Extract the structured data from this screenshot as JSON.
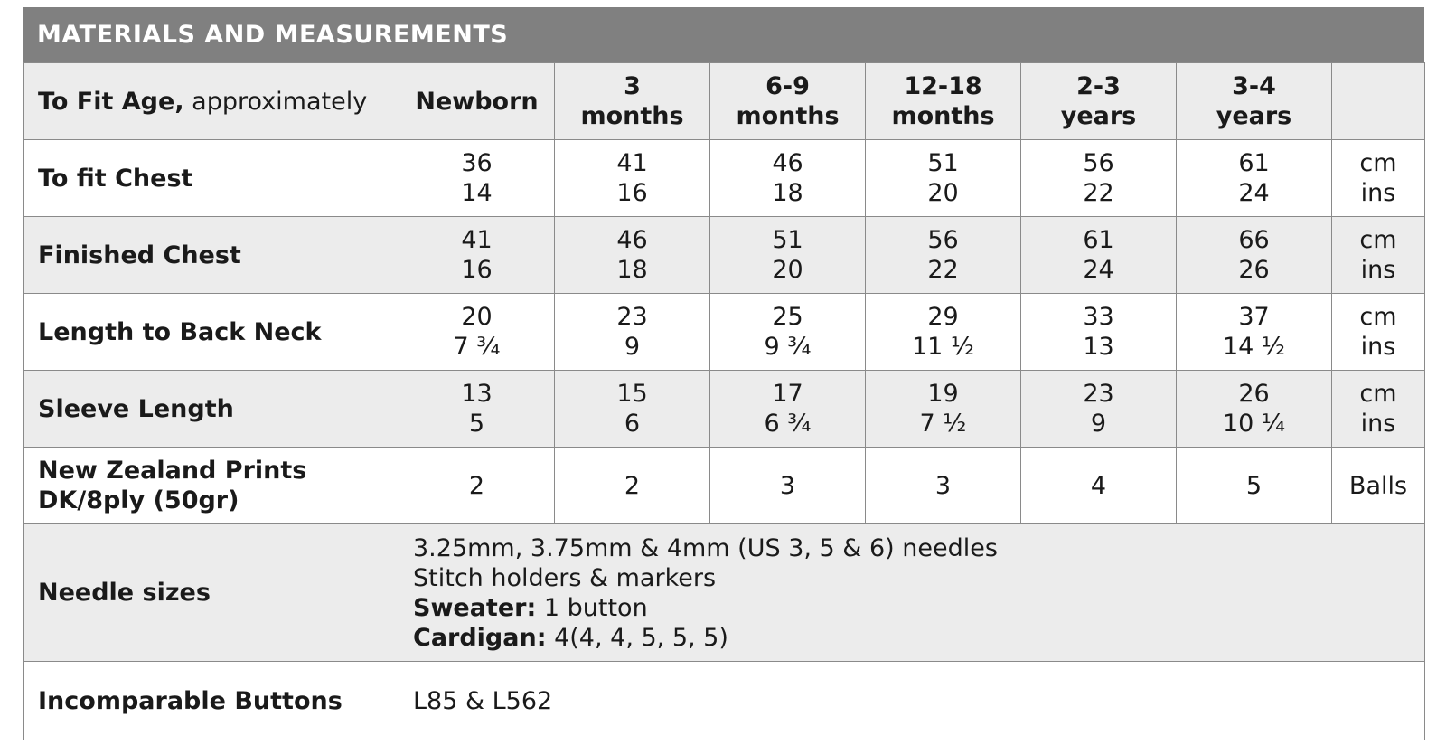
{
  "title": "MATERIALS AND MEASUREMENTS",
  "header": {
    "label_bold": "To Fit Age,",
    "label_rest": "approximately",
    "sizes": [
      [
        "Newborn"
      ],
      [
        "3",
        "months"
      ],
      [
        "6-9",
        "months"
      ],
      [
        "12-18",
        "months"
      ],
      [
        "2-3",
        "years"
      ],
      [
        "3-4",
        "years"
      ]
    ]
  },
  "rows": [
    {
      "label": [
        "To fit Chest"
      ],
      "values": [
        [
          "36",
          "14"
        ],
        [
          "41",
          "16"
        ],
        [
          "46",
          "18"
        ],
        [
          "51",
          "20"
        ],
        [
          "56",
          "22"
        ],
        [
          "61",
          "24"
        ]
      ],
      "units": [
        "cm",
        "ins"
      ]
    },
    {
      "label": [
        "Finished Chest"
      ],
      "values": [
        [
          "41",
          "16"
        ],
        [
          "46",
          "18"
        ],
        [
          "51",
          "20"
        ],
        [
          "56",
          "22"
        ],
        [
          "61",
          "24"
        ],
        [
          "66",
          "26"
        ]
      ],
      "units": [
        "cm",
        "ins"
      ]
    },
    {
      "label": [
        "Length to Back Neck"
      ],
      "values": [
        [
          "20",
          "7 ¾"
        ],
        [
          "23",
          "9"
        ],
        [
          "25",
          "9 ¾"
        ],
        [
          "29",
          "11 ½"
        ],
        [
          "33",
          "13"
        ],
        [
          "37",
          "14 ½"
        ]
      ],
      "units": [
        "cm",
        "ins"
      ]
    },
    {
      "label": [
        "Sleeve Length"
      ],
      "values": [
        [
          "13",
          "5"
        ],
        [
          "15",
          "6"
        ],
        [
          "17",
          "6 ¾"
        ],
        [
          "19",
          "7 ½"
        ],
        [
          "23",
          "9"
        ],
        [
          "26",
          "10 ¼"
        ]
      ],
      "units": [
        "cm",
        "ins"
      ]
    },
    {
      "label": [
        "New Zealand Prints",
        "DK/8ply (50gr)"
      ],
      "values": [
        [
          "2"
        ],
        [
          "2"
        ],
        [
          "3"
        ],
        [
          "3"
        ],
        [
          "4"
        ],
        [
          "5"
        ]
      ],
      "units": [
        "Balls"
      ]
    }
  ],
  "needles": {
    "label": "Needle sizes",
    "lines": [
      {
        "text": "3.25mm, 3.75mm & 4mm (US 3, 5 & 6) needles"
      },
      {
        "text": "Stitch holders & markers"
      },
      {
        "bold": "Sweater:",
        "text": "1 button"
      },
      {
        "bold": "Cardigan:",
        "text": "4(4, 4, 5, 5, 5)"
      }
    ]
  },
  "buttons": {
    "label": "Incomparable Buttons",
    "text": "L85 & L562"
  }
}
